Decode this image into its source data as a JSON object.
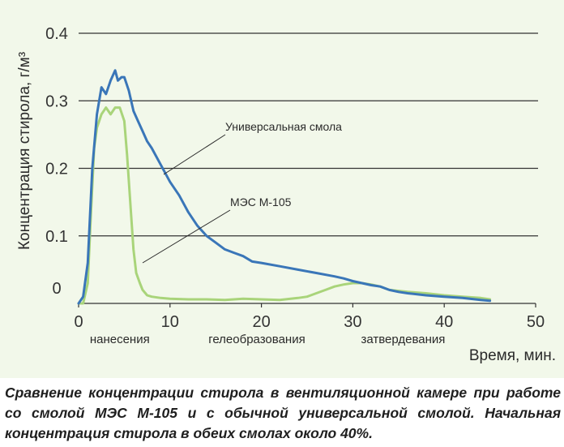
{
  "chart_data": {
    "type": "line",
    "ylabel": "Концентрация стирола, г/м³",
    "xlabel": "Время, мин.",
    "xlim": [
      0,
      50
    ],
    "ylim": [
      0,
      0.4
    ],
    "x_ticks": [
      "0",
      "10",
      "20",
      "30",
      "40",
      "50"
    ],
    "y_ticks": [
      "0",
      "0.1",
      "0.2",
      "0.3",
      "0.4"
    ],
    "grid": "horizontal",
    "phase_labels": [
      {
        "label": "нанесения",
        "x": 4.5
      },
      {
        "label": "гелеобразования",
        "x": 19.5
      },
      {
        "label": "затвердевания",
        "x": 35.5
      }
    ],
    "series": [
      {
        "name": "Универсальная смола",
        "color": "#3a76b8",
        "x": [
          0,
          0.5,
          1,
          1.5,
          2,
          2.5,
          3,
          3.5,
          4,
          4.3,
          4.7,
          5,
          5.5,
          6,
          6.5,
          7,
          7.5,
          8,
          9,
          10,
          11,
          12,
          13,
          14,
          15,
          16,
          17,
          18,
          19,
          20,
          22,
          24,
          26,
          28,
          29,
          30,
          31,
          32,
          33,
          34,
          35,
          36,
          38,
          40,
          42,
          44,
          45
        ],
        "values": [
          0.0,
          0.01,
          0.06,
          0.2,
          0.28,
          0.32,
          0.31,
          0.33,
          0.345,
          0.33,
          0.335,
          0.335,
          0.315,
          0.285,
          0.27,
          0.255,
          0.24,
          0.23,
          0.205,
          0.18,
          0.16,
          0.135,
          0.115,
          0.1,
          0.09,
          0.08,
          0.075,
          0.07,
          0.062,
          0.06,
          0.055,
          0.05,
          0.045,
          0.04,
          0.037,
          0.033,
          0.03,
          0.027,
          0.025,
          0.02,
          0.017,
          0.015,
          0.012,
          0.01,
          0.008,
          0.005,
          0.004
        ]
      },
      {
        "name": "МЭС М-105",
        "color": "#a9d47a",
        "x": [
          0,
          0.5,
          1,
          1.3,
          1.7,
          2,
          2.5,
          3,
          3.5,
          4,
          4.5,
          5,
          5.3,
          5.7,
          6,
          6.3,
          6.7,
          7,
          7.5,
          8,
          9,
          10,
          12,
          14,
          16,
          18,
          20,
          22,
          24,
          25,
          26,
          27,
          28,
          29,
          30,
          31,
          32,
          33,
          34,
          36,
          38,
          40,
          42,
          44,
          45
        ],
        "values": [
          0.0,
          0.0,
          0.03,
          0.12,
          0.23,
          0.26,
          0.28,
          0.29,
          0.28,
          0.29,
          0.29,
          0.27,
          0.22,
          0.14,
          0.08,
          0.045,
          0.03,
          0.02,
          0.012,
          0.01,
          0.008,
          0.007,
          0.006,
          0.006,
          0.005,
          0.007,
          0.006,
          0.005,
          0.008,
          0.01,
          0.015,
          0.02,
          0.025,
          0.028,
          0.03,
          0.03,
          0.028,
          0.025,
          0.02,
          0.017,
          0.015,
          0.012,
          0.01,
          0.008,
          0.006
        ]
      }
    ]
  },
  "caption": "Сравнение концентрации стирола в вентиляционной камере при работе со смолой МЭС М-105 и с обычной универсальной смолой. Начальная концентрация стирола в обеих смолах около 40%."
}
